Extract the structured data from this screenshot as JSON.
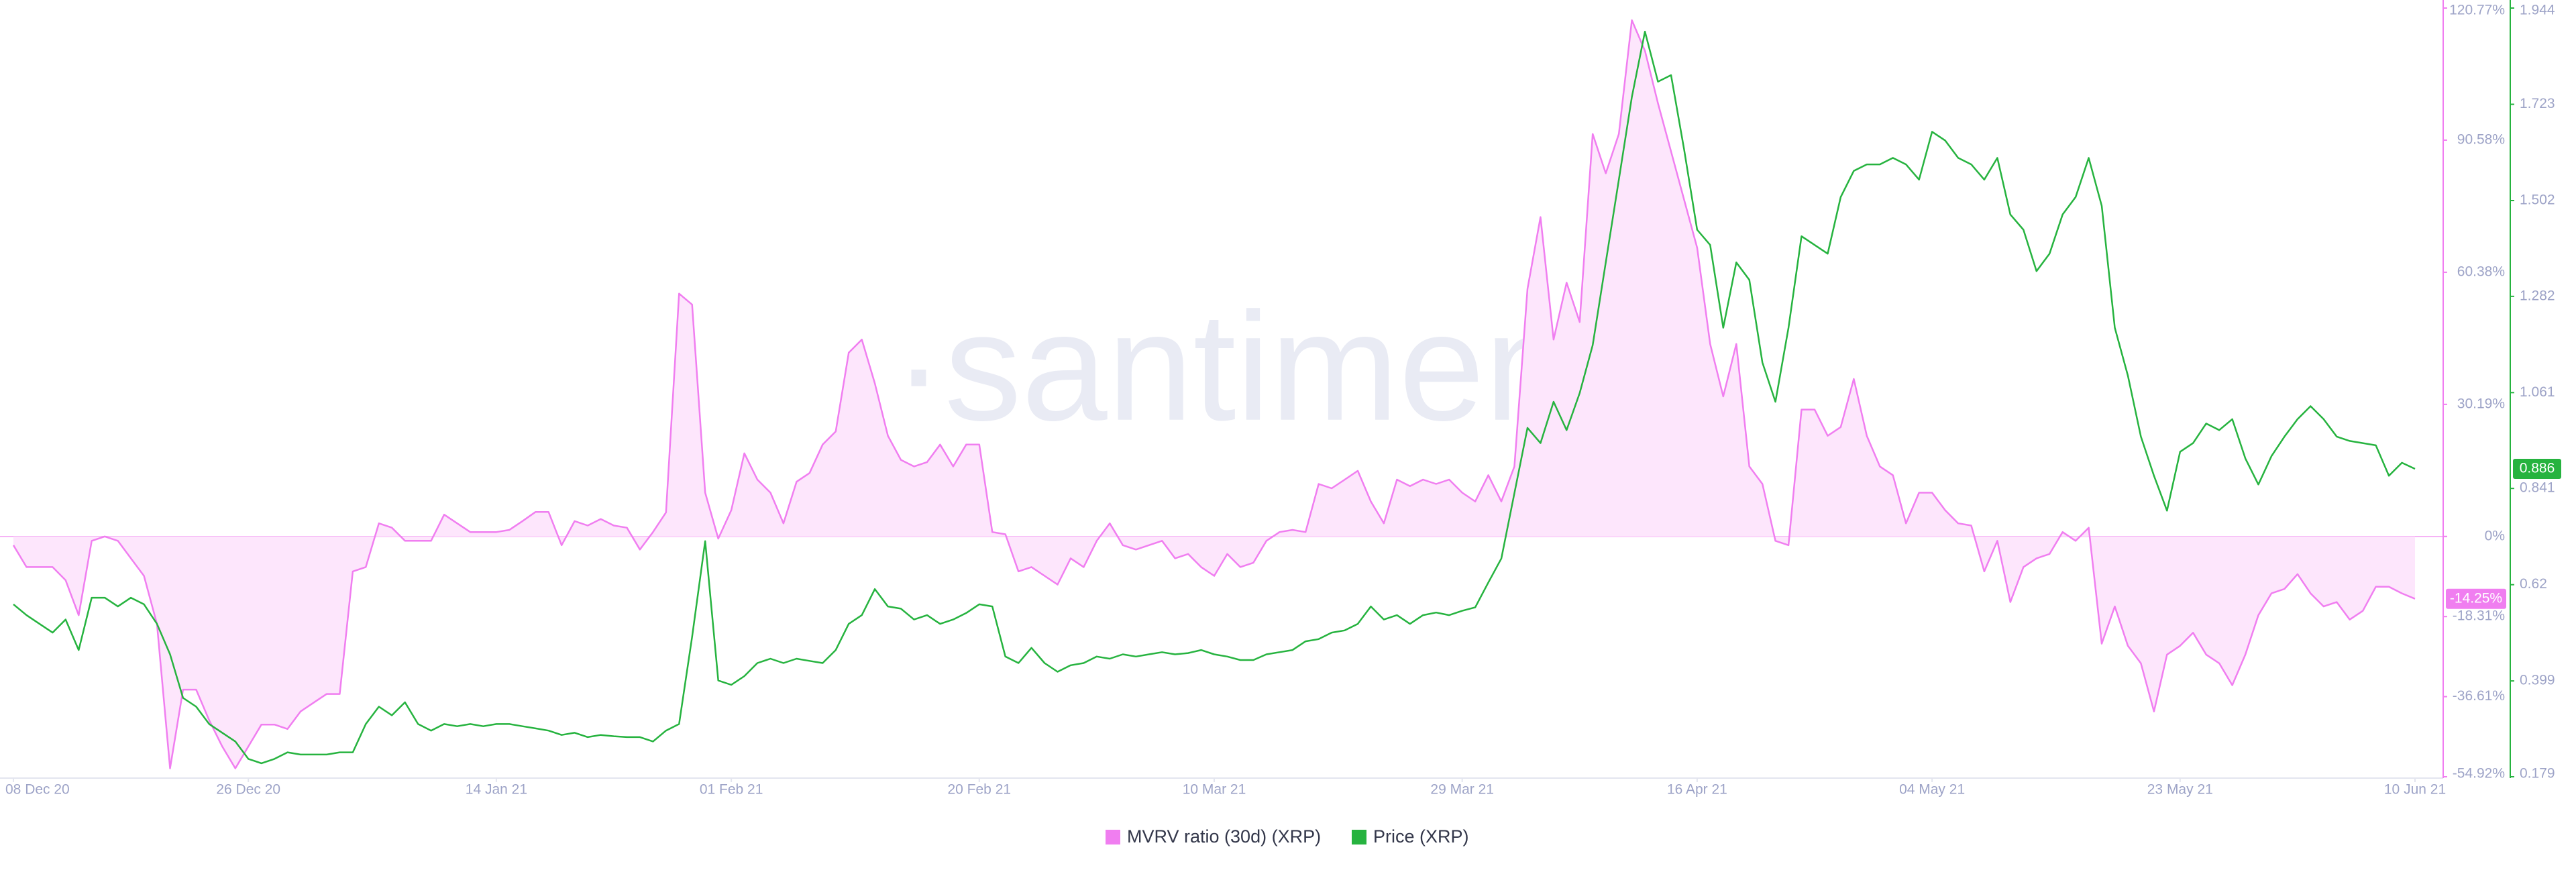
{
  "chart_data": {
    "type": "line",
    "watermark": "·santiment.",
    "x": [
      "2020-12-08",
      "2020-12-09",
      "2020-12-10",
      "2020-12-11",
      "2020-12-12",
      "2020-12-13",
      "2020-12-14",
      "2020-12-15",
      "2020-12-16",
      "2020-12-17",
      "2020-12-18",
      "2020-12-19",
      "2020-12-20",
      "2020-12-21",
      "2020-12-22",
      "2020-12-23",
      "2020-12-24",
      "2020-12-25",
      "2020-12-26",
      "2020-12-27",
      "2020-12-28",
      "2020-12-29",
      "2020-12-30",
      "2020-12-31",
      "2021-01-01",
      "2021-01-02",
      "2021-01-03",
      "2021-01-04",
      "2021-01-05",
      "2021-01-06",
      "2021-01-07",
      "2021-01-08",
      "2021-01-09",
      "2021-01-10",
      "2021-01-11",
      "2021-01-12",
      "2021-01-13",
      "2021-01-14",
      "2021-01-15",
      "2021-01-16",
      "2021-01-17",
      "2021-01-18",
      "2021-01-19",
      "2021-01-20",
      "2021-01-21",
      "2021-01-22",
      "2021-01-23",
      "2021-01-24",
      "2021-01-25",
      "2021-01-26",
      "2021-01-27",
      "2021-01-28",
      "2021-01-29",
      "2021-01-30",
      "2021-01-31",
      "2021-02-01",
      "2021-02-02",
      "2021-02-03",
      "2021-02-04",
      "2021-02-05",
      "2021-02-06",
      "2021-02-07",
      "2021-02-08",
      "2021-02-09",
      "2021-02-10",
      "2021-02-11",
      "2021-02-12",
      "2021-02-13",
      "2021-02-14",
      "2021-02-15",
      "2021-02-16",
      "2021-02-17",
      "2021-02-18",
      "2021-02-19",
      "2021-02-20",
      "2021-02-21",
      "2021-02-22",
      "2021-02-23",
      "2021-02-24",
      "2021-02-25",
      "2021-02-26",
      "2021-02-27",
      "2021-02-28",
      "2021-03-01",
      "2021-03-02",
      "2021-03-03",
      "2021-03-04",
      "2021-03-05",
      "2021-03-06",
      "2021-03-07",
      "2021-03-08",
      "2021-03-09",
      "2021-03-10",
      "2021-03-11",
      "2021-03-12",
      "2021-03-13",
      "2021-03-14",
      "2021-03-15",
      "2021-03-16",
      "2021-03-17",
      "2021-03-18",
      "2021-03-19",
      "2021-03-20",
      "2021-03-21",
      "2021-03-22",
      "2021-03-23",
      "2021-03-24",
      "2021-03-25",
      "2021-03-26",
      "2021-03-27",
      "2021-03-28",
      "2021-03-29",
      "2021-03-30",
      "2021-03-31",
      "2021-04-01",
      "2021-04-02",
      "2021-04-03",
      "2021-04-04",
      "2021-04-05",
      "2021-04-06",
      "2021-04-07",
      "2021-04-08",
      "2021-04-09",
      "2021-04-10",
      "2021-04-11",
      "2021-04-12",
      "2021-04-13",
      "2021-04-14",
      "2021-04-15",
      "2021-04-16",
      "2021-04-17",
      "2021-04-18",
      "2021-04-19",
      "2021-04-20",
      "2021-04-21",
      "2021-04-22",
      "2021-04-23",
      "2021-04-24",
      "2021-04-25",
      "2021-04-26",
      "2021-04-27",
      "2021-04-28",
      "2021-04-29",
      "2021-04-30",
      "2021-05-01",
      "2021-05-02",
      "2021-05-03",
      "2021-05-04",
      "2021-05-05",
      "2021-05-06",
      "2021-05-07",
      "2021-05-08",
      "2021-05-09",
      "2021-05-10",
      "2021-05-11",
      "2021-05-12",
      "2021-05-13",
      "2021-05-14",
      "2021-05-15",
      "2021-05-16",
      "2021-05-17",
      "2021-05-18",
      "2021-05-19",
      "2021-05-20",
      "2021-05-21",
      "2021-05-22",
      "2021-05-23",
      "2021-05-24",
      "2021-05-25",
      "2021-05-26",
      "2021-05-27",
      "2021-05-28",
      "2021-05-29",
      "2021-05-30",
      "2021-05-31",
      "2021-06-01",
      "2021-06-02",
      "2021-06-03",
      "2021-06-04",
      "2021-06-05",
      "2021-06-06",
      "2021-06-07",
      "2021-06-08",
      "2021-06-09",
      "2021-06-10"
    ],
    "xticks": [
      {
        "value": "2020-12-08",
        "label": "08 Dec 20"
      },
      {
        "value": "2020-12-26",
        "label": "26 Dec 20"
      },
      {
        "value": "2021-01-14",
        "label": "14 Jan 21"
      },
      {
        "value": "2021-02-01",
        "label": "01 Feb 21"
      },
      {
        "value": "2021-02-20",
        "label": "20 Feb 21"
      },
      {
        "value": "2021-03-10",
        "label": "10 Mar 21"
      },
      {
        "value": "2021-03-29",
        "label": "29 Mar 21"
      },
      {
        "value": "2021-04-16",
        "label": "16 Apr 21"
      },
      {
        "value": "2021-05-04",
        "label": "04 May 21"
      },
      {
        "value": "2021-05-23",
        "label": "23 May 21"
      },
      {
        "value": "2021-06-10",
        "label": "10 Jun 21"
      }
    ],
    "ylim": [
      -54.92,
      120.77
    ],
    "yticks": [
      {
        "value": -54.92,
        "label": "-54.92%"
      },
      {
        "value": -36.61,
        "label": "-36.61%"
      },
      {
        "value": -18.31,
        "label": "-18.31%"
      },
      {
        "value": 0,
        "label": "0%"
      },
      {
        "value": 30.19,
        "label": "30.19%"
      },
      {
        "value": 60.38,
        "label": "60.38%"
      },
      {
        "value": 90.58,
        "label": "90.58%"
      },
      {
        "value": 120.77,
        "label": "120.77%"
      }
    ],
    "y2lim": [
      0.179,
      1.944
    ],
    "y2ticks": [
      0.179,
      0.399,
      0.62,
      0.841,
      1.061,
      1.282,
      1.502,
      1.723,
      1.944
    ],
    "series": [
      {
        "name": "MVRV ratio (30d) (XRP)",
        "color": "#f07ef0",
        "fill": "#fde6fc",
        "last_value_label": "-14.25%",
        "values": [
          -2,
          -7,
          -7,
          -7,
          -10,
          -18,
          -1,
          0,
          -1,
          -5,
          -9,
          -20,
          -53,
          -35,
          -35,
          -42,
          -48,
          -53,
          -48,
          -43,
          -43,
          -44,
          -40,
          -38,
          -36,
          -36,
          -8,
          -7,
          3,
          2,
          -1,
          -1,
          -1,
          5,
          3,
          1,
          1,
          1,
          1.5,
          3.5,
          5.6,
          5.6,
          -2,
          3.5,
          2.5,
          4,
          2.5,
          2,
          -3,
          1,
          5.5,
          55.5,
          53,
          10,
          -0.5,
          6,
          19,
          13,
          10,
          3,
          12.5,
          14.5,
          21,
          24,
          42,
          45,
          35,
          23,
          17.5,
          16,
          17,
          21,
          16,
          21,
          21,
          1,
          0.5,
          -8,
          -7,
          -9,
          -11,
          -5,
          -7,
          -1,
          3,
          -2,
          -3,
          -2,
          -1,
          -5,
          -4,
          -7,
          -9,
          -4,
          -7,
          -6,
          -1,
          1,
          1.5,
          1,
          12,
          11,
          13,
          15,
          8,
          3,
          13,
          11.5,
          13,
          12,
          13,
          10,
          8,
          14,
          8,
          16,
          56.6,
          73,
          45,
          58,
          49,
          92,
          83,
          92,
          118,
          111,
          99,
          88,
          77,
          66,
          44,
          32,
          44,
          16,
          12,
          -1,
          -2,
          29,
          29,
          23,
          25,
          36,
          23,
          16,
          14,
          3,
          10,
          10,
          6,
          3,
          2.5,
          -8,
          -1,
          -15,
          -7,
          -5,
          -4,
          1,
          -1,
          2,
          -24.5,
          -16,
          -25,
          -29,
          -40,
          -27,
          -25,
          -22,
          -27,
          -29,
          -34,
          -27,
          -18,
          -13,
          -12,
          -8.6,
          -13,
          -16,
          -15,
          -19,
          -17,
          -11.5,
          -11.5,
          -13,
          -14.25
        ]
      },
      {
        "name": "Price (XRP)",
        "color": "#26b33f",
        "axis": "y2",
        "values": [
          0.575,
          0.55,
          0.53,
          0.51,
          0.54,
          0.47,
          0.59,
          0.59,
          0.57,
          0.59,
          0.575,
          0.53,
          0.46,
          0.36,
          0.34,
          0.3,
          0.28,
          0.26,
          0.22,
          0.21,
          0.22,
          0.235,
          0.23,
          0.23,
          0.23,
          0.235,
          0.235,
          0.3,
          0.34,
          0.32,
          0.35,
          0.3,
          0.285,
          0.3,
          0.295,
          0.3,
          0.295,
          0.3,
          0.3,
          0.295,
          0.29,
          0.285,
          0.275,
          0.28,
          0.27,
          0.275,
          0.272,
          0.27,
          0.27,
          0.26,
          0.285,
          0.3,
          0.5,
          0.72,
          0.4,
          0.39,
          0.41,
          0.44,
          0.45,
          0.44,
          0.45,
          0.445,
          0.44,
          0.47,
          0.53,
          0.55,
          0.61,
          0.57,
          0.565,
          0.54,
          0.55,
          0.53,
          0.54,
          0.555,
          0.575,
          0.57,
          0.455,
          0.44,
          0.475,
          0.44,
          0.42,
          0.435,
          0.44,
          0.455,
          0.45,
          0.46,
          0.455,
          0.46,
          0.465,
          0.46,
          0.463,
          0.47,
          0.46,
          0.455,
          0.447,
          0.447,
          0.46,
          0.465,
          0.47,
          0.49,
          0.495,
          0.51,
          0.515,
          0.53,
          0.57,
          0.54,
          0.55,
          0.53,
          0.55,
          0.556,
          0.55,
          0.56,
          0.568,
          0.625,
          0.68,
          0.83,
          0.98,
          0.945,
          1.04,
          0.975,
          1.06,
          1.17,
          1.36,
          1.55,
          1.74,
          1.89,
          1.775,
          1.79,
          1.62,
          1.435,
          1.4,
          1.21,
          1.36,
          1.32,
          1.13,
          1.04,
          1.21,
          1.42,
          1.4,
          1.38,
          1.51,
          1.57,
          1.585,
          1.585,
          1.6,
          1.585,
          1.55,
          1.66,
          1.64,
          1.6,
          1.585,
          1.55,
          1.6,
          1.47,
          1.435,
          1.34,
          1.38,
          1.47,
          1.51,
          1.6,
          1.49,
          1.21,
          1.1,
          0.96,
          0.87,
          0.79,
          0.925,
          0.945,
          0.99,
          0.975,
          1.0,
          0.91,
          0.85,
          0.915,
          0.96,
          1.0,
          1.03,
          1.0,
          0.96,
          0.95,
          0.945,
          0.94,
          0.87,
          0.9,
          0.886
        ]
      }
    ]
  }
}
